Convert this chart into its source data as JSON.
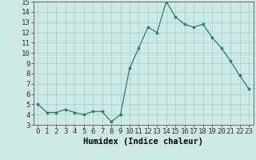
{
  "x": [
    0,
    1,
    2,
    3,
    4,
    5,
    6,
    7,
    8,
    9,
    10,
    11,
    12,
    13,
    14,
    15,
    16,
    17,
    18,
    19,
    20,
    21,
    22,
    23
  ],
  "y": [
    5.0,
    4.2,
    4.2,
    4.5,
    4.2,
    4.0,
    4.3,
    4.3,
    3.3,
    4.0,
    8.5,
    10.5,
    12.5,
    12.0,
    15.0,
    13.5,
    12.8,
    12.5,
    12.8,
    11.5,
    10.5,
    9.2,
    7.8,
    6.5
  ],
  "line_color": "#2e7d6e",
  "bg_color": "#cce9e5",
  "grid_color": "#aacfc8",
  "xlabel": "Humidex (Indice chaleur)",
  "ylim": [
    3,
    15
  ],
  "xlim_min": -0.5,
  "xlim_max": 23.5,
  "yticks": [
    3,
    4,
    5,
    6,
    7,
    8,
    9,
    10,
    11,
    12,
    13,
    14,
    15
  ],
  "xticks": [
    0,
    1,
    2,
    3,
    4,
    5,
    6,
    7,
    8,
    9,
    10,
    11,
    12,
    13,
    14,
    15,
    16,
    17,
    18,
    19,
    20,
    21,
    22,
    23
  ],
  "tick_fontsize": 6.5,
  "xlabel_fontsize": 7.5
}
